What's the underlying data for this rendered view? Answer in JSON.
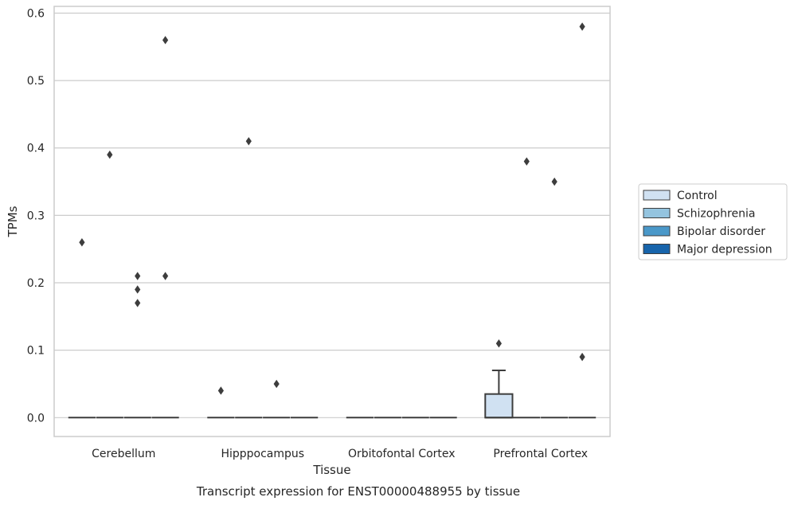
{
  "chart_data": {
    "type": "box",
    "title": "",
    "caption": "Transcript expression for ENST00000488955 by tissue",
    "xlabel": "Tissue",
    "ylabel": "TPMs",
    "ylim": [
      -0.028,
      0.61
    ],
    "yticks": [
      "0.0",
      "0.1",
      "0.2",
      "0.3",
      "0.4",
      "0.5",
      "0.6"
    ],
    "grid": true,
    "legend_position": "right",
    "categories": [
      "Cerebellum",
      "Hipppocampus",
      "Orbitofontal Cortex",
      "Prefrontal Cortex"
    ],
    "series": [
      {
        "name": "Control",
        "color": "#d0e1f2"
      },
      {
        "name": "Schizophrenia",
        "color": "#94c4df"
      },
      {
        "name": "Bipolar disorder",
        "color": "#4a98c9"
      },
      {
        "name": "Major depression",
        "color": "#1764ab"
      }
    ],
    "boxes": [
      {
        "category": "Cerebellum",
        "series": "Control",
        "q1": 0,
        "median": 0,
        "q3": 0,
        "whisker_low": 0,
        "whisker_high": 0,
        "outliers": [
          0.26
        ]
      },
      {
        "category": "Cerebellum",
        "series": "Schizophrenia",
        "q1": 0,
        "median": 0,
        "q3": 0,
        "whisker_low": 0,
        "whisker_high": 0,
        "outliers": [
          0.39
        ]
      },
      {
        "category": "Cerebellum",
        "series": "Bipolar disorder",
        "q1": 0,
        "median": 0,
        "q3": 0,
        "whisker_low": 0,
        "whisker_high": 0,
        "outliers": [
          0.21,
          0.19,
          0.17
        ]
      },
      {
        "category": "Cerebellum",
        "series": "Major depression",
        "q1": 0,
        "median": 0,
        "q3": 0,
        "whisker_low": 0,
        "whisker_high": 0,
        "outliers": [
          0.56,
          0.21
        ]
      },
      {
        "category": "Hipppocampus",
        "series": "Control",
        "q1": 0,
        "median": 0,
        "q3": 0,
        "whisker_low": 0,
        "whisker_high": 0,
        "outliers": [
          0.04
        ]
      },
      {
        "category": "Hipppocampus",
        "series": "Schizophrenia",
        "q1": 0,
        "median": 0,
        "q3": 0,
        "whisker_low": 0,
        "whisker_high": 0,
        "outliers": [
          0.41
        ]
      },
      {
        "category": "Hipppocampus",
        "series": "Bipolar disorder",
        "q1": 0,
        "median": 0,
        "q3": 0,
        "whisker_low": 0,
        "whisker_high": 0,
        "outliers": [
          0.05
        ]
      },
      {
        "category": "Hipppocampus",
        "series": "Major depression",
        "q1": 0,
        "median": 0,
        "q3": 0,
        "whisker_low": 0,
        "whisker_high": 0,
        "outliers": []
      },
      {
        "category": "Orbitofontal Cortex",
        "series": "Control",
        "q1": 0,
        "median": 0,
        "q3": 0,
        "whisker_low": 0,
        "whisker_high": 0,
        "outliers": []
      },
      {
        "category": "Orbitofontal Cortex",
        "series": "Schizophrenia",
        "q1": 0,
        "median": 0,
        "q3": 0,
        "whisker_low": 0,
        "whisker_high": 0,
        "outliers": []
      },
      {
        "category": "Orbitofontal Cortex",
        "series": "Bipolar disorder",
        "q1": 0,
        "median": 0,
        "q3": 0,
        "whisker_low": 0,
        "whisker_high": 0,
        "outliers": []
      },
      {
        "category": "Orbitofontal Cortex",
        "series": "Major depression",
        "q1": 0,
        "median": 0,
        "q3": 0,
        "whisker_low": 0,
        "whisker_high": 0,
        "outliers": []
      },
      {
        "category": "Prefrontal Cortex",
        "series": "Control",
        "q1": 0,
        "median": 0,
        "q3": 0.035,
        "whisker_low": 0,
        "whisker_high": 0.07,
        "outliers": [
          0.11
        ]
      },
      {
        "category": "Prefrontal Cortex",
        "series": "Schizophrenia",
        "q1": 0,
        "median": 0,
        "q3": 0,
        "whisker_low": 0,
        "whisker_high": 0,
        "outliers": [
          0.38
        ]
      },
      {
        "category": "Prefrontal Cortex",
        "series": "Bipolar disorder",
        "q1": 0,
        "median": 0,
        "q3": 0,
        "whisker_low": 0,
        "whisker_high": 0,
        "outliers": [
          0.35
        ]
      },
      {
        "category": "Prefrontal Cortex",
        "series": "Major depression",
        "q1": 0,
        "median": 0,
        "q3": 0,
        "whisker_low": 0,
        "whisker_high": 0,
        "outliers": [
          0.58,
          0.09
        ]
      }
    ]
  }
}
